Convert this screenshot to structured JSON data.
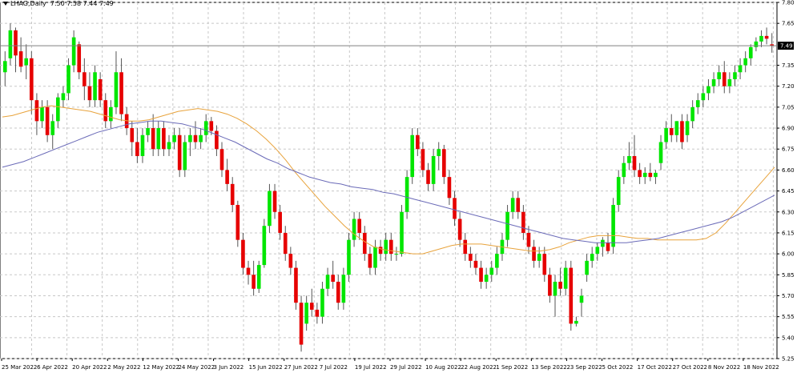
{
  "header": {
    "symbol": "LHAG,Daily",
    "ohlc": "7.50 7.58 7.44 7.49"
  },
  "colors": {
    "background": "#ffffff",
    "grid": "#c8c8c8",
    "bull": "#00e600",
    "bear": "#e60000",
    "ma_fast": "#e8a33c",
    "ma_slow": "#6b6bb8",
    "price_line": "#808080",
    "price_tag_bg": "#000000",
    "price_tag_fg": "#ffffff"
  },
  "chart_data": {
    "type": "candlestick",
    "title": "LHAG,Daily",
    "ylim": [
      5.25,
      7.8
    ],
    "y_ticks": [
      "7.80",
      "7.65",
      "7.49",
      "7.35",
      "7.20",
      "7.05",
      "6.90",
      "6.75",
      "6.60",
      "6.45",
      "6.30",
      "6.15",
      "6.00",
      "5.85",
      "5.70",
      "5.55",
      "5.40",
      "5.25"
    ],
    "current_price": 7.49,
    "x_ticks": [
      "25 Mar 2022",
      "6 Apr 2022",
      "20 Apr 2022",
      "2 May 2022",
      "12 May 2022",
      "24 May 2022",
      "3 Jun 2022",
      "15 Jun 2022",
      "27 Jun 2022",
      "7 Jul 2022",
      "19 Jul 2022",
      "29 Jul 2022",
      "10 Aug 2022",
      "22 Aug 2022",
      "1 Sep 2022",
      "13 Sep 2022",
      "23 Sep 2022",
      "5 Oct 2022",
      "17 Oct 2022",
      "27 Oct 2022",
      "8 Nov 2022",
      "18 Nov 2022"
    ],
    "candles": [
      [
        7.3,
        7.45,
        7.2,
        7.38
      ],
      [
        7.4,
        7.65,
        7.35,
        7.6
      ],
      [
        7.6,
        7.62,
        7.3,
        7.42
      ],
      [
        7.45,
        7.55,
        7.3,
        7.34
      ],
      [
        7.35,
        7.5,
        7.25,
        7.4
      ],
      [
        7.4,
        7.45,
        7.0,
        7.1
      ],
      [
        7.1,
        7.15,
        6.85,
        6.95
      ],
      [
        6.95,
        7.1,
        6.9,
        7.05
      ],
      [
        7.05,
        7.1,
        6.8,
        6.85
      ],
      [
        6.85,
        7.0,
        6.75,
        6.95
      ],
      [
        6.95,
        7.15,
        6.9,
        7.12
      ],
      [
        7.1,
        7.2,
        7.05,
        7.15
      ],
      [
        7.15,
        7.4,
        7.1,
        7.35
      ],
      [
        7.35,
        7.6,
        7.3,
        7.55
      ],
      [
        7.5,
        7.52,
        7.25,
        7.3
      ],
      [
        7.3,
        7.4,
        7.1,
        7.2
      ],
      [
        7.2,
        7.3,
        7.05,
        7.1
      ],
      [
        7.1,
        7.35,
        7.05,
        7.3
      ],
      [
        7.25,
        7.3,
        7.05,
        7.1
      ],
      [
        7.1,
        7.15,
        6.9,
        6.95
      ],
      [
        6.95,
        7.1,
        6.9,
        7.05
      ],
      [
        7.05,
        7.45,
        7.0,
        7.3
      ],
      [
        7.3,
        7.4,
        6.95,
        7.0
      ],
      [
        7.0,
        7.05,
        6.85,
        6.9
      ],
      [
        6.9,
        6.95,
        6.7,
        6.8
      ],
      [
        6.8,
        6.9,
        6.65,
        6.7
      ],
      [
        6.7,
        6.9,
        6.65,
        6.85
      ],
      [
        6.85,
        6.95,
        6.8,
        6.9
      ],
      [
        6.9,
        7.0,
        6.7,
        6.75
      ],
      [
        6.75,
        6.95,
        6.7,
        6.9
      ],
      [
        6.9,
        6.95,
        6.7,
        6.75
      ],
      [
        6.75,
        6.85,
        6.7,
        6.8
      ],
      [
        6.8,
        6.9,
        6.75,
        6.85
      ],
      [
        6.85,
        6.9,
        6.55,
        6.6
      ],
      [
        6.6,
        6.85,
        6.55,
        6.8
      ],
      [
        6.8,
        6.9,
        6.7,
        6.85
      ],
      [
        6.85,
        6.95,
        6.75,
        6.8
      ],
      [
        6.8,
        6.9,
        6.75,
        6.85
      ],
      [
        6.85,
        7.0,
        6.8,
        6.95
      ],
      [
        6.95,
        6.98,
        6.85,
        6.88
      ],
      [
        6.88,
        6.92,
        6.7,
        6.75
      ],
      [
        6.75,
        6.8,
        6.55,
        6.6
      ],
      [
        6.6,
        6.68,
        6.45,
        6.5
      ],
      [
        6.5,
        6.55,
        6.3,
        6.35
      ],
      [
        6.35,
        6.38,
        6.05,
        6.1
      ],
      [
        6.1,
        6.15,
        5.85,
        5.9
      ],
      [
        5.9,
        5.95,
        5.78,
        5.85
      ],
      [
        5.85,
        5.95,
        5.7,
        5.75
      ],
      [
        5.75,
        5.95,
        5.72,
        5.92
      ],
      [
        5.92,
        6.25,
        5.9,
        6.2
      ],
      [
        6.2,
        6.5,
        6.15,
        6.45
      ],
      [
        6.45,
        6.5,
        6.25,
        6.3
      ],
      [
        6.3,
        6.35,
        6.1,
        6.15
      ],
      [
        6.15,
        6.2,
        5.95,
        6.0
      ],
      [
        6.0,
        6.05,
        5.85,
        5.9
      ],
      [
        5.9,
        5.95,
        5.6,
        5.65
      ],
      [
        5.65,
        5.7,
        5.3,
        5.35
      ],
      [
        5.5,
        5.7,
        5.45,
        5.65
      ],
      [
        5.65,
        5.75,
        5.55,
        5.6
      ],
      [
        5.6,
        5.65,
        5.5,
        5.55
      ],
      [
        5.55,
        5.8,
        5.5,
        5.75
      ],
      [
        5.75,
        5.9,
        5.7,
        5.85
      ],
      [
        5.85,
        5.95,
        5.75,
        5.8
      ],
      [
        5.8,
        5.85,
        5.6,
        5.65
      ],
      [
        5.65,
        5.9,
        5.6,
        5.85
      ],
      [
        5.85,
        6.15,
        5.8,
        6.1
      ],
      [
        6.1,
        6.3,
        6.05,
        6.25
      ],
      [
        6.25,
        6.3,
        6.1,
        6.15
      ],
      [
        6.15,
        6.2,
        5.95,
        6.0
      ],
      [
        6.0,
        6.05,
        5.85,
        5.9
      ],
      [
        5.9,
        6.1,
        5.85,
        6.05
      ],
      [
        6.05,
        6.1,
        5.95,
        6.0
      ],
      [
        6.0,
        6.15,
        5.95,
        6.1
      ],
      [
        6.1,
        6.15,
        5.95,
        6.0
      ],
      [
        6.0,
        6.05,
        5.95,
        6.0
      ],
      [
        6.0,
        6.35,
        5.98,
        6.3
      ],
      [
        6.3,
        6.6,
        6.25,
        6.55
      ],
      [
        6.55,
        6.9,
        6.5,
        6.85
      ],
      [
        6.85,
        6.9,
        6.7,
        6.75
      ],
      [
        6.75,
        6.8,
        6.55,
        6.6
      ],
      [
        6.6,
        6.65,
        6.45,
        6.5
      ],
      [
        6.5,
        6.75,
        6.45,
        6.7
      ],
      [
        6.7,
        6.8,
        6.6,
        6.75
      ],
      [
        6.75,
        6.78,
        6.5,
        6.55
      ],
      [
        6.55,
        6.6,
        6.35,
        6.4
      ],
      [
        6.4,
        6.45,
        6.2,
        6.25
      ],
      [
        6.25,
        6.3,
        6.05,
        6.1
      ],
      [
        6.1,
        6.15,
        5.95,
        6.0
      ],
      [
        6.0,
        6.05,
        5.9,
        5.95
      ],
      [
        5.95,
        6.0,
        5.85,
        5.9
      ],
      [
        5.9,
        5.95,
        5.75,
        5.8
      ],
      [
        5.8,
        5.9,
        5.75,
        5.85
      ],
      [
        5.85,
        5.95,
        5.8,
        5.9
      ],
      [
        5.9,
        6.05,
        5.85,
        6.0
      ],
      [
        6.0,
        6.15,
        5.95,
        6.1
      ],
      [
        6.1,
        6.35,
        6.05,
        6.3
      ],
      [
        6.3,
        6.45,
        6.25,
        6.4
      ],
      [
        6.4,
        6.45,
        6.25,
        6.3
      ],
      [
        6.3,
        6.35,
        6.1,
        6.15
      ],
      [
        6.15,
        6.2,
        6.0,
        6.05
      ],
      [
        6.05,
        6.1,
        5.9,
        5.95
      ],
      [
        5.95,
        6.05,
        5.9,
        6.0
      ],
      [
        6.0,
        6.05,
        5.8,
        5.85
      ],
      [
        5.85,
        5.9,
        5.65,
        5.7
      ],
      [
        5.7,
        5.85,
        5.55,
        5.8
      ],
      [
        5.8,
        5.9,
        5.7,
        5.75
      ],
      [
        5.75,
        5.95,
        5.7,
        5.9
      ],
      [
        5.9,
        5.95,
        5.45,
        5.5
      ],
      [
        5.5,
        5.55,
        5.48,
        5.52
      ],
      [
        5.65,
        5.75,
        5.55,
        5.7
      ],
      [
        5.85,
        6.0,
        5.8,
        5.95
      ],
      [
        5.95,
        6.05,
        5.9,
        6.0
      ],
      [
        6.0,
        6.08,
        5.95,
        6.05
      ],
      [
        6.05,
        6.12,
        5.98,
        6.1
      ],
      [
        6.08,
        6.15,
        6.0,
        6.02
      ],
      [
        6.05,
        6.4,
        6.0,
        6.35
      ],
      [
        6.35,
        6.6,
        6.3,
        6.55
      ],
      [
        6.55,
        6.7,
        6.5,
        6.65
      ],
      [
        6.65,
        6.8,
        6.6,
        6.7
      ],
      [
        6.7,
        6.85,
        6.55,
        6.6
      ],
      [
        6.6,
        6.65,
        6.5,
        6.55
      ],
      [
        6.55,
        6.62,
        6.5,
        6.58
      ],
      [
        6.58,
        6.65,
        6.52,
        6.55
      ],
      [
        6.55,
        6.6,
        6.5,
        6.58
      ],
      [
        6.65,
        6.85,
        6.6,
        6.8
      ],
      [
        6.8,
        6.95,
        6.75,
        6.9
      ],
      [
        6.9,
        7.0,
        6.8,
        6.85
      ],
      [
        6.85,
        6.95,
        6.8,
        6.95
      ],
      [
        6.95,
        7.0,
        6.75,
        6.8
      ],
      [
        6.85,
        7.0,
        6.8,
        6.95
      ],
      [
        6.95,
        7.1,
        6.9,
        7.05
      ],
      [
        7.05,
        7.15,
        7.0,
        7.1
      ],
      [
        7.1,
        7.2,
        7.05,
        7.15
      ],
      [
        7.15,
        7.25,
        7.1,
        7.2
      ],
      [
        7.2,
        7.3,
        7.15,
        7.25
      ],
      [
        7.25,
        7.35,
        7.2,
        7.3
      ],
      [
        7.3,
        7.38,
        7.15,
        7.2
      ],
      [
        7.2,
        7.3,
        7.15,
        7.25
      ],
      [
        7.25,
        7.35,
        7.2,
        7.3
      ],
      [
        7.3,
        7.4,
        7.25,
        7.35
      ],
      [
        7.35,
        7.45,
        7.3,
        7.4
      ],
      [
        7.4,
        7.5,
        7.35,
        7.48
      ],
      [
        7.48,
        7.55,
        7.45,
        7.52
      ],
      [
        7.52,
        7.6,
        7.48,
        7.56
      ],
      [
        7.56,
        7.62,
        7.5,
        7.54
      ],
      [
        7.5,
        7.58,
        7.44,
        7.49
      ]
    ],
    "ma_fast": [
      6.98,
      6.99,
      7.01,
      7.03,
      7.05,
      7.06,
      7.05,
      7.04,
      7.03,
      7.02,
      7.0,
      6.98,
      6.96,
      6.95,
      6.95,
      6.96,
      6.98,
      7.0,
      7.02,
      7.03,
      7.04,
      7.03,
      7.02,
      7.0,
      6.97,
      6.93,
      6.88,
      6.82,
      6.75,
      6.67,
      6.58,
      6.5,
      6.42,
      6.34,
      6.27,
      6.2,
      6.14,
      6.09,
      6.05,
      6.03,
      6.02,
      6.01,
      6.0,
      6.0,
      6.02,
      6.04,
      6.06,
      6.07,
      6.07,
      6.07,
      6.06,
      6.05,
      6.04,
      6.03,
      6.02,
      6.02,
      6.03,
      6.05,
      6.08,
      6.1,
      6.12,
      6.13,
      6.13,
      6.13,
      6.12,
      6.11,
      6.11,
      6.1,
      6.1,
      6.1,
      6.1,
      6.1,
      6.11,
      6.15,
      6.22,
      6.3,
      6.38,
      6.46,
      6.54,
      6.62
    ],
    "ma_slow": [
      6.62,
      6.64,
      6.66,
      6.69,
      6.72,
      6.75,
      6.78,
      6.81,
      6.84,
      6.87,
      6.89,
      6.91,
      6.93,
      6.94,
      6.95,
      6.95,
      6.94,
      6.93,
      6.91,
      6.89,
      6.86,
      6.83,
      6.8,
      6.76,
      6.72,
      6.68,
      6.65,
      6.61,
      6.58,
      6.55,
      6.53,
      6.51,
      6.5,
      6.48,
      6.47,
      6.46,
      6.44,
      6.43,
      6.41,
      6.39,
      6.37,
      6.35,
      6.33,
      6.31,
      6.29,
      6.27,
      6.25,
      6.23,
      6.21,
      6.19,
      6.17,
      6.15,
      6.13,
      6.11,
      6.1,
      6.09,
      6.08,
      6.08,
      6.08,
      6.08,
      6.09,
      6.1,
      6.11,
      6.13,
      6.15,
      6.17,
      6.19,
      6.21,
      6.23,
      6.26,
      6.3,
      6.34,
      6.38,
      6.42
    ]
  }
}
